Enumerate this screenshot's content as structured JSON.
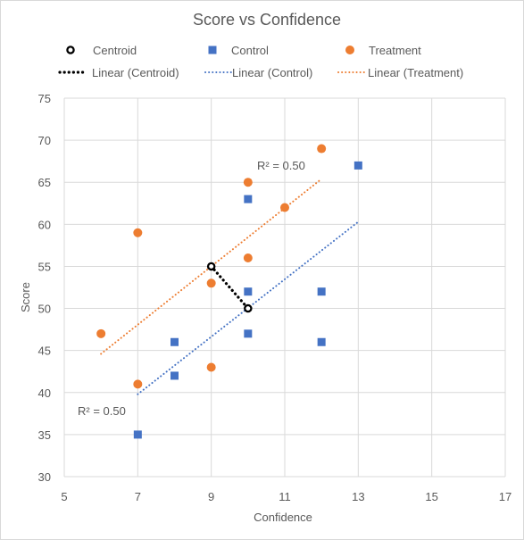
{
  "chart_data": {
    "type": "scatter",
    "title": "Score vs Confidence",
    "xlabel": "Confidence",
    "ylabel": "Score",
    "xlim": [
      5,
      17
    ],
    "ylim": [
      30,
      75
    ],
    "xticks": [
      5,
      7,
      9,
      11,
      13,
      15,
      17
    ],
    "yticks": [
      30,
      35,
      40,
      45,
      50,
      55,
      60,
      65,
      70,
      75
    ],
    "xgrid_step": 2,
    "ygrid_step": 5,
    "grid": true,
    "legend_position": "top",
    "series": [
      {
        "name": "Centroid",
        "marker": "circle-hollow",
        "color": "#000000",
        "points": [
          [
            9,
            55
          ],
          [
            10,
            50
          ]
        ]
      },
      {
        "name": "Control",
        "marker": "square",
        "color": "#4472c4",
        "points": [
          [
            7,
            35
          ],
          [
            8,
            46
          ],
          [
            8,
            42
          ],
          [
            10,
            63
          ],
          [
            10,
            52
          ],
          [
            10,
            47
          ],
          [
            12,
            52
          ],
          [
            12,
            46
          ],
          [
            13,
            67
          ]
        ]
      },
      {
        "name": "Treatment",
        "marker": "circle",
        "color": "#ed7d31",
        "points": [
          [
            6,
            47
          ],
          [
            7,
            59
          ],
          [
            7,
            41
          ],
          [
            9,
            53
          ],
          [
            9,
            43
          ],
          [
            10,
            65
          ],
          [
            10,
            56
          ],
          [
            11,
            62
          ],
          [
            12,
            69
          ]
        ]
      }
    ],
    "trendlines": [
      {
        "name": "Linear (Centroid)",
        "color": "#000000",
        "from": [
          9,
          55
        ],
        "to": [
          10,
          50
        ]
      },
      {
        "name": "Linear (Control)",
        "color": "#4472c4",
        "from": [
          7,
          39.8
        ],
        "to": [
          13,
          60.3
        ],
        "r2_label": "R² = 0.50"
      },
      {
        "name": "Linear (Treatment)",
        "color": "#ed7d31",
        "from": [
          6,
          44.6
        ],
        "to": [
          12,
          65.4
        ],
        "r2_label": "R² = 0.50"
      }
    ]
  }
}
